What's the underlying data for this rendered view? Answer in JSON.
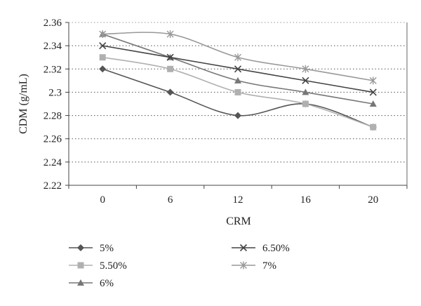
{
  "chart_data": {
    "type": "line",
    "categories": [
      "0",
      "6",
      "12",
      "16",
      "20"
    ],
    "xlabel": "CRM",
    "ylabel": "CDM (g/mL)",
    "ylim": [
      2.22,
      2.36
    ],
    "yticks": [
      "2.22",
      "2.24",
      "2.26",
      "2.28",
      "2.3",
      "2.32",
      "2.34",
      "2.36"
    ],
    "grid": "horizontal dotted",
    "legend_position": "bottom",
    "series": [
      {
        "name": "5%",
        "values": [
          2.32,
          2.3,
          2.28,
          2.29,
          2.27
        ],
        "color": "#555555",
        "marker": "diamond"
      },
      {
        "name": "5.50%",
        "values": [
          2.33,
          2.32,
          2.3,
          2.29,
          2.27
        ],
        "color": "#b0b0b0",
        "marker": "square"
      },
      {
        "name": "6%",
        "values": [
          2.35,
          2.33,
          2.31,
          2.3,
          2.29
        ],
        "color": "#777777",
        "marker": "triangle"
      },
      {
        "name": "6.50%",
        "values": [
          2.34,
          2.33,
          2.32,
          2.31,
          2.3
        ],
        "color": "#444444",
        "marker": "x"
      },
      {
        "name": "7%",
        "values": [
          2.35,
          2.35,
          2.33,
          2.32,
          2.31
        ],
        "color": "#999999",
        "marker": "asterisk"
      }
    ]
  }
}
